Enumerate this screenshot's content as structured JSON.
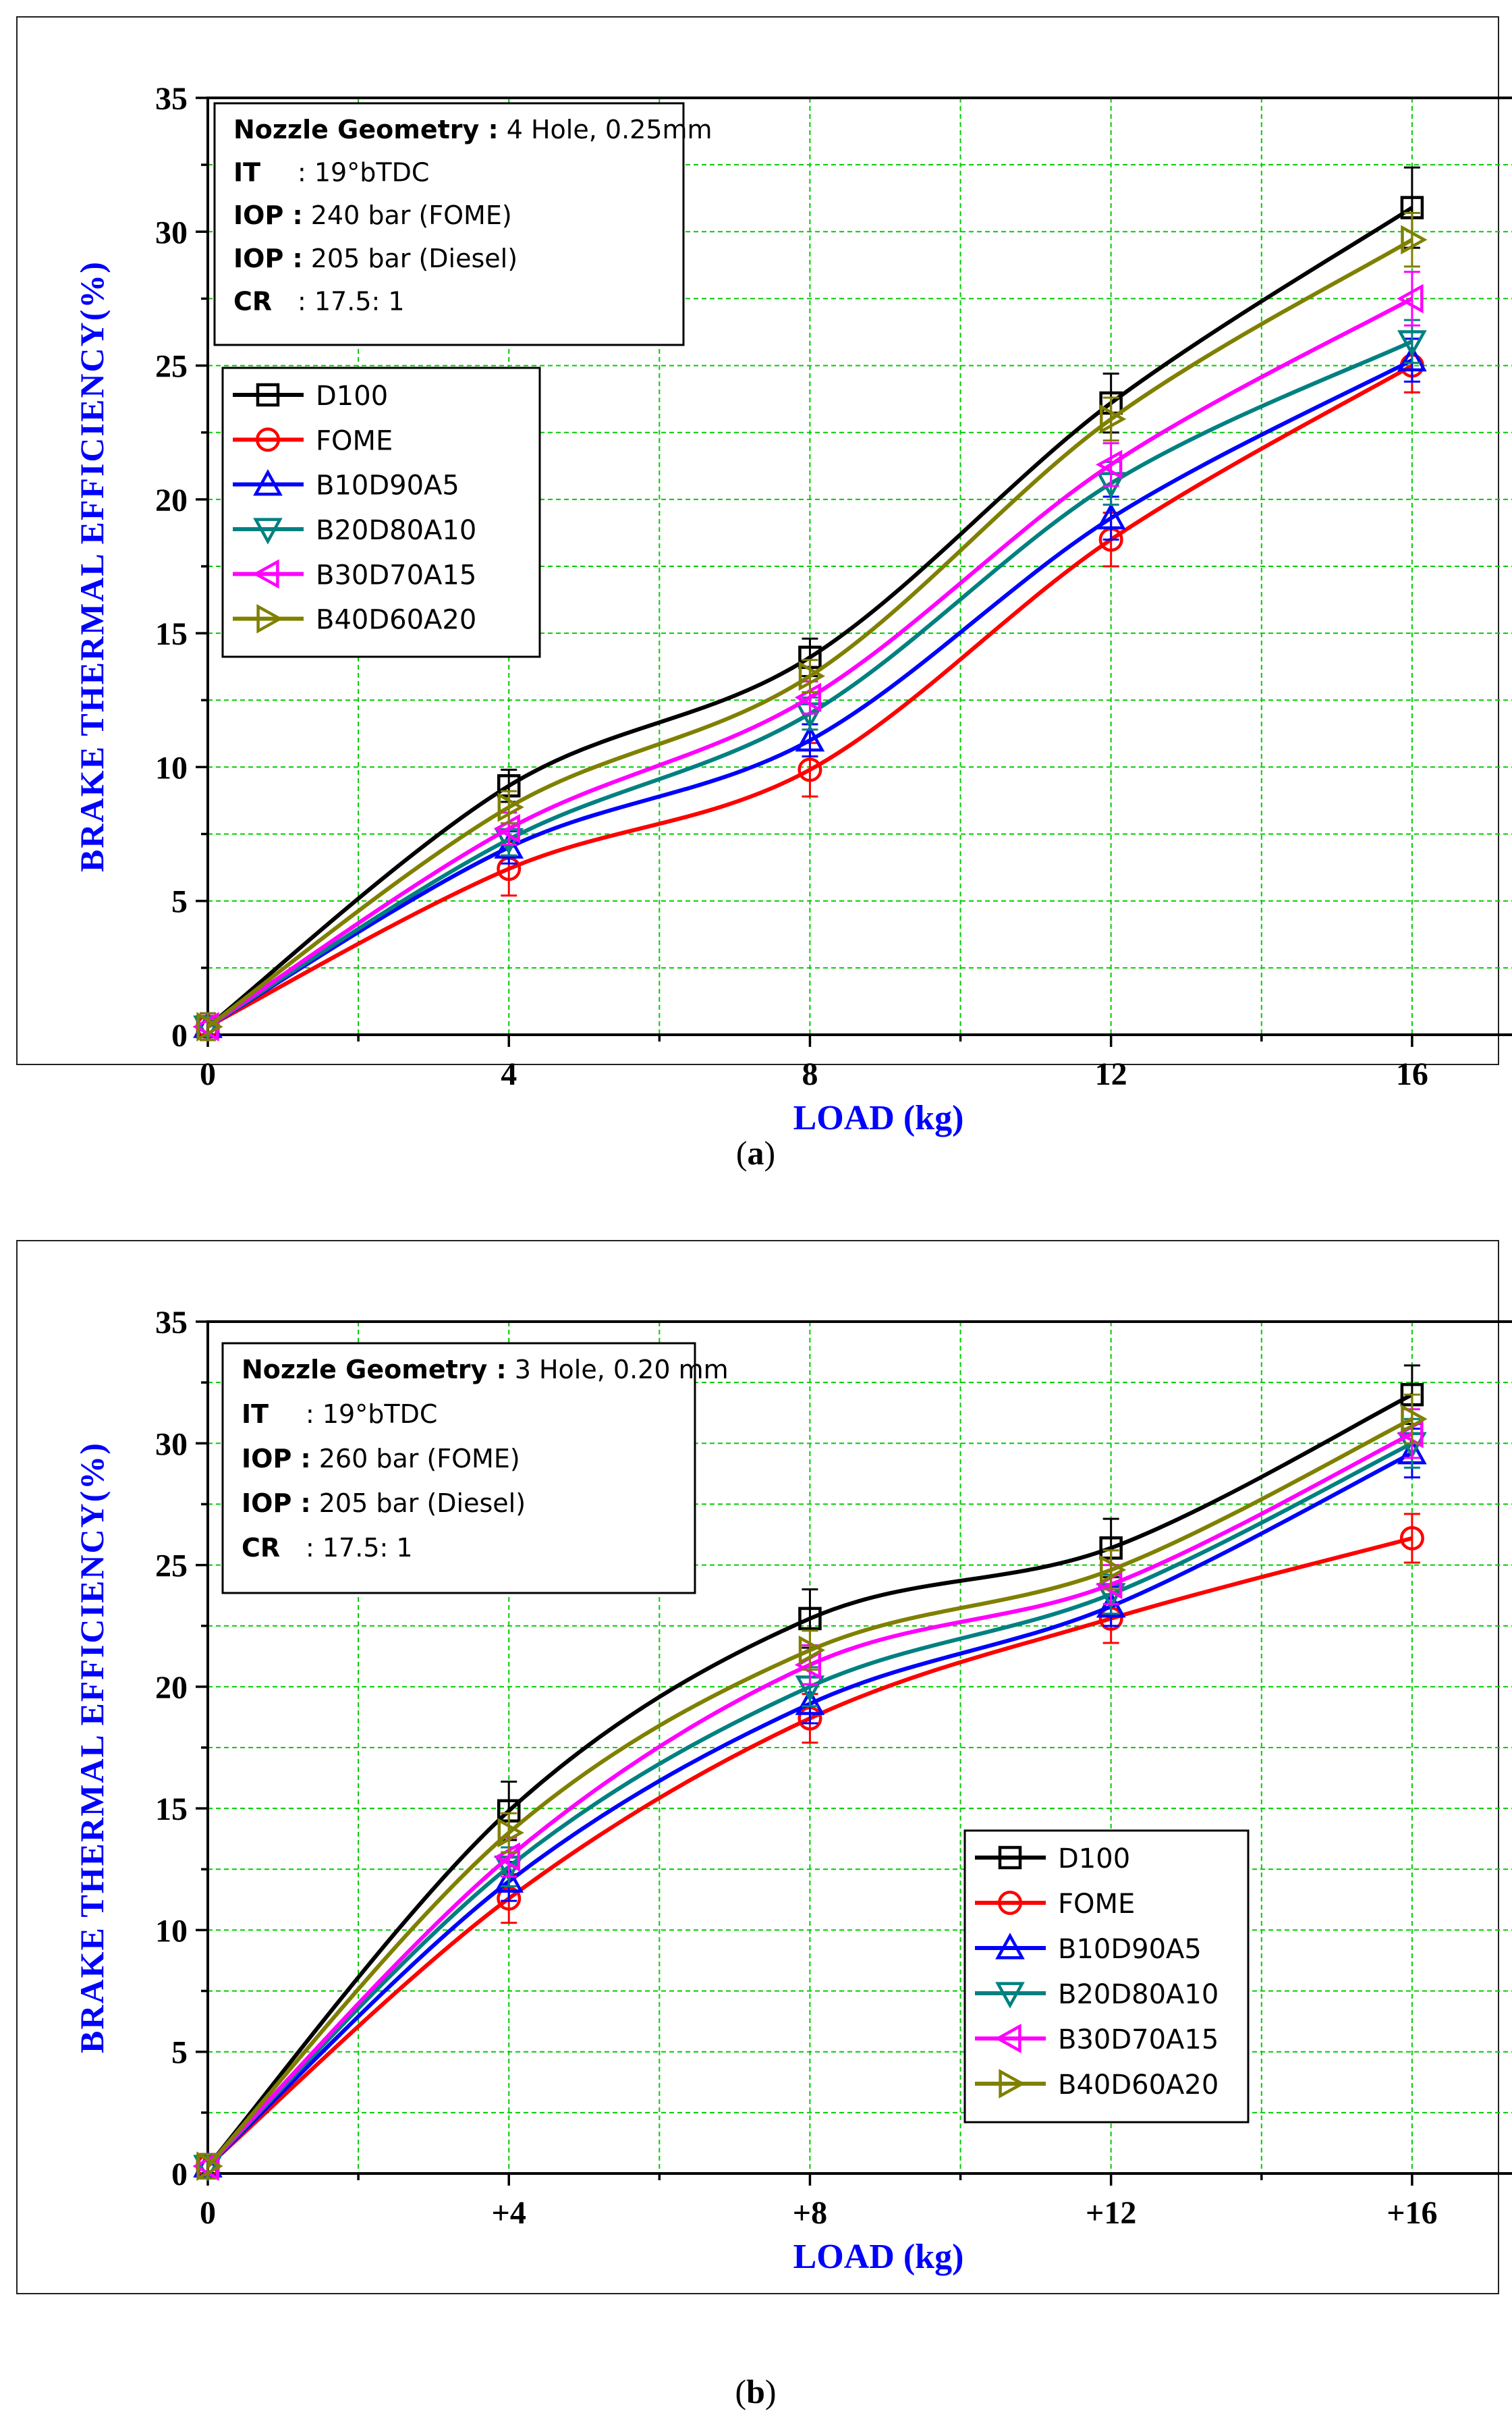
{
  "colors": {
    "D100": "#000000",
    "FOME": "#ff0000",
    "B10D90A5": "#0000ff",
    "B20D80A10": "#008080",
    "B30D70A15": "#ff00ff",
    "B40D60A20": "#808000",
    "axis_label": "#0000ff",
    "grid": "#00cc00"
  },
  "chart_data": [
    {
      "id": "a",
      "type": "line",
      "caption_letter": "a",
      "xlabel": "LOAD (kg)",
      "ylabel": "BRAKE THERMAL EFFICIENCY(%)",
      "xlim": [
        0,
        18
      ],
      "ylim": [
        0,
        35
      ],
      "x": [
        0,
        4,
        8,
        12,
        16
      ],
      "x_ticks": [
        0,
        4,
        8,
        12,
        16
      ],
      "x_tick_labels": [
        "0",
        "4",
        "8",
        "12",
        "16"
      ],
      "y_ticks": [
        0,
        5,
        10,
        15,
        20,
        25,
        30,
        35
      ],
      "y_tick_labels": [
        "0",
        "5",
        "10",
        "15",
        "20",
        "25",
        "30",
        "35"
      ],
      "grid": true,
      "legend_position": "upper-left",
      "info_box": [
        {
          "key": "Nozzle Geometry :",
          "value": "4 Hole, 0.25mm"
        },
        {
          "key": "IT",
          "value": ": 19°bTDC"
        },
        {
          "key": "IOP :",
          "value": "240 bar (FOME)"
        },
        {
          "key": "IOP :",
          "value": "205 bar (Diesel)"
        },
        {
          "key": "CR",
          "value": ": 17.5: 1"
        }
      ],
      "series": [
        {
          "name": "D100",
          "marker": "square",
          "values": [
            0.3,
            9.3,
            14.1,
            23.6,
            30.9
          ],
          "errors": [
            0.5,
            0.6,
            0.7,
            1.1,
            1.5
          ]
        },
        {
          "name": "FOME",
          "marker": "circle",
          "values": [
            0.3,
            6.2,
            9.9,
            18.5,
            25.0
          ],
          "errors": [
            0.5,
            1.0,
            1.0,
            1.0,
            1.0
          ]
        },
        {
          "name": "B10D90A5",
          "marker": "triangle-up",
          "values": [
            0.3,
            7.0,
            11.0,
            19.3,
            25.2
          ],
          "errors": [
            0.5,
            0.6,
            0.6,
            0.8,
            0.8
          ]
        },
        {
          "name": "B20D80A10",
          "marker": "triangle-down",
          "values": [
            0.3,
            7.3,
            12.0,
            20.6,
            25.9
          ],
          "errors": [
            0.5,
            0.6,
            0.6,
            0.8,
            0.8
          ]
        },
        {
          "name": "B30D70A15",
          "marker": "triangle-left",
          "values": [
            0.3,
            7.7,
            12.6,
            21.3,
            27.5
          ],
          "errors": [
            0.5,
            0.6,
            0.6,
            0.8,
            1.0
          ]
        },
        {
          "name": "B40D60A20",
          "marker": "triangle-right",
          "values": [
            0.3,
            8.5,
            13.4,
            23.0,
            29.7
          ],
          "errors": [
            0.5,
            0.6,
            0.6,
            0.8,
            1.0
          ]
        }
      ]
    },
    {
      "id": "b",
      "type": "line",
      "caption_letter": "b",
      "xlabel": "LOAD (kg)",
      "ylabel": "BRAKE THERMAL EFFICIENCY(%)",
      "xlim": [
        0,
        18
      ],
      "ylim": [
        0,
        35
      ],
      "x": [
        0,
        4,
        8,
        12,
        16
      ],
      "x_ticks": [
        0,
        4,
        8,
        12,
        16
      ],
      "x_tick_labels": [
        "0",
        "+4",
        "+8",
        "+12",
        "+16"
      ],
      "y_ticks": [
        0,
        5,
        10,
        15,
        20,
        25,
        30,
        35
      ],
      "y_tick_labels": [
        "0",
        "5",
        "10",
        "15",
        "20",
        "25",
        "30",
        "35"
      ],
      "grid": true,
      "legend_position": "lower-right",
      "info_box": [
        {
          "key": "Nozzle Geometry :",
          "value": "3 Hole, 0.20 mm"
        },
        {
          "key": "IT",
          "value": ": 19°bTDC"
        },
        {
          "key": "IOP :",
          "value": "260 bar (FOME)"
        },
        {
          "key": "IOP :",
          "value": "205 bar (Diesel)"
        },
        {
          "key": "CR",
          "value": ": 17.5: 1"
        }
      ],
      "series": [
        {
          "name": "D100",
          "marker": "square",
          "values": [
            0.3,
            14.9,
            22.8,
            25.7,
            32.0
          ],
          "errors": [
            0.5,
            1.2,
            1.2,
            1.2,
            1.2
          ]
        },
        {
          "name": "FOME",
          "marker": "circle",
          "values": [
            0.3,
            11.3,
            18.7,
            22.8,
            26.1
          ],
          "errors": [
            0.5,
            1.0,
            1.0,
            1.0,
            1.0
          ]
        },
        {
          "name": "B10D90A5",
          "marker": "triangle-up",
          "values": [
            0.3,
            12.0,
            19.3,
            23.3,
            29.6
          ],
          "errors": [
            0.5,
            0.8,
            0.8,
            0.8,
            1.0
          ]
        },
        {
          "name": "B20D80A10",
          "marker": "triangle-down",
          "values": [
            0.3,
            12.6,
            20.0,
            23.8,
            30.0
          ],
          "errors": [
            0.5,
            0.8,
            0.8,
            0.8,
            1.0
          ]
        },
        {
          "name": "B30D70A15",
          "marker": "triangle-left",
          "values": [
            0.3,
            13.0,
            20.9,
            24.2,
            30.4
          ],
          "errors": [
            0.5,
            0.8,
            0.8,
            0.8,
            1.0
          ]
        },
        {
          "name": "B40D60A20",
          "marker": "triangle-right",
          "values": [
            0.3,
            14.0,
            21.5,
            24.8,
            31.0
          ],
          "errors": [
            0.5,
            0.8,
            0.8,
            0.8,
            1.0
          ]
        }
      ]
    }
  ]
}
